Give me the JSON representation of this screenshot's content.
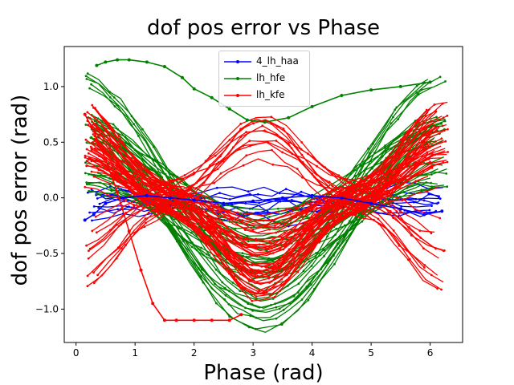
{
  "chart_data": {
    "type": "line",
    "title": "dof pos error vs Phase",
    "xlabel": "Phase (rad)",
    "ylabel": "dof pos error (rad)",
    "xlim": [
      -0.2,
      6.55
    ],
    "ylim": [
      -1.3,
      1.36
    ],
    "xticks": [
      0,
      1,
      2,
      3,
      4,
      5,
      6
    ],
    "yticks": [
      -1.0,
      -0.5,
      0.0,
      0.5,
      1.0
    ],
    "xtick_labels": [
      "0",
      "1",
      "2",
      "3",
      "4",
      "5",
      "6"
    ],
    "ytick_labels": [
      "−1.0",
      "−0.5",
      "0.0",
      "0.5",
      "1.0"
    ],
    "legend_position": "top-center",
    "grid": false,
    "series": [
      {
        "name": "4_lh_haa",
        "color": "#0000ff",
        "x": [
          0.15,
          0.3,
          0.5,
          0.8,
          1.2,
          1.6,
          2.0,
          2.5,
          3.0,
          3.5,
          4.0,
          4.5,
          5.0,
          5.5,
          5.9,
          6.2
        ],
        "y": [
          -0.2,
          -0.15,
          -0.05,
          0.0,
          0.02,
          0.0,
          -0.02,
          -0.05,
          -0.03,
          0.0,
          0.02,
          0.0,
          -0.05,
          -0.1,
          -0.15,
          -0.12
        ]
      },
      {
        "name": "lh_hfe",
        "color": "#008000",
        "x": [
          0.35,
          0.5,
          0.7,
          0.9,
          1.2,
          1.5,
          1.8,
          2.0,
          2.3,
          2.6,
          2.9,
          3.2,
          3.6,
          4.0,
          4.5,
          5.0,
          5.5,
          6.0
        ],
        "y": [
          1.19,
          1.22,
          1.24,
          1.24,
          1.22,
          1.18,
          1.08,
          0.98,
          0.9,
          0.8,
          0.7,
          0.68,
          0.72,
          0.82,
          0.92,
          0.97,
          1.0,
          1.04
        ]
      },
      {
        "name": "lh_kfe",
        "color": "#ff0000",
        "x": [
          0.15,
          0.3,
          0.5,
          0.7,
          0.9,
          1.1,
          1.3,
          1.5,
          1.7,
          2.0,
          2.3,
          2.6,
          2.8
        ],
        "y": [
          0.75,
          0.6,
          0.35,
          0.05,
          -0.3,
          -0.65,
          -0.95,
          -1.1,
          -1.1,
          -1.1,
          -1.1,
          -1.1,
          -1.05
        ]
      }
    ]
  }
}
